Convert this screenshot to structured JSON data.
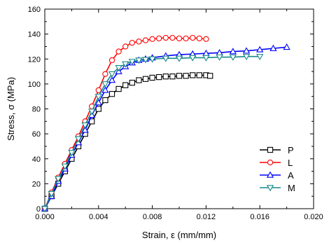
{
  "chart_data": {
    "type": "line",
    "title": "",
    "xlabel": "Strain, ε (mm/mm)",
    "ylabel": "Stress, σ (MPa)",
    "xlim": [
      0,
      0.02
    ],
    "ylim": [
      0,
      160
    ],
    "xticks": [
      "0.000",
      "0.004",
      "0.008",
      "0.012",
      "0.016",
      "0.020"
    ],
    "yticks": [
      "0",
      "20",
      "40",
      "60",
      "80",
      "100",
      "120",
      "140",
      "160"
    ],
    "grid": false,
    "legend_position": "lower-right",
    "series": [
      {
        "name": "P",
        "color": "#000000",
        "marker": "square",
        "x": [
          0,
          0.0005,
          0.001,
          0.0015,
          0.002,
          0.0025,
          0.003,
          0.0035,
          0.004,
          0.0045,
          0.005,
          0.0055,
          0.006,
          0.0065,
          0.007,
          0.0075,
          0.008,
          0.0085,
          0.009,
          0.0095,
          0.01,
          0.0105,
          0.011,
          0.0115,
          0.012,
          0.0123
        ],
        "y": [
          0,
          10,
          20,
          30,
          40,
          50,
          60,
          70,
          80,
          87,
          92,
          96,
          99,
          101,
          103,
          104,
          105,
          105.5,
          106,
          106,
          106.5,
          106.5,
          107,
          107,
          107,
          106.5
        ]
      },
      {
        "name": "L",
        "color": "#ff0000",
        "marker": "circle",
        "x": [
          0,
          0.0005,
          0.001,
          0.0015,
          0.002,
          0.0025,
          0.003,
          0.0035,
          0.004,
          0.0045,
          0.005,
          0.0055,
          0.006,
          0.0065,
          0.007,
          0.0075,
          0.008,
          0.0085,
          0.009,
          0.0095,
          0.01,
          0.0105,
          0.011,
          0.0115,
          0.012
        ],
        "y": [
          0,
          13,
          25,
          36,
          47,
          58,
          70,
          82,
          95,
          108,
          119,
          126,
          130,
          133,
          134,
          135,
          136,
          136.5,
          137,
          137,
          136.5,
          136.5,
          137,
          136.5,
          136
        ]
      },
      {
        "name": "A",
        "color": "#0000ff",
        "marker": "triangle-up",
        "x": [
          0,
          0.0005,
          0.001,
          0.0015,
          0.002,
          0.0025,
          0.003,
          0.0035,
          0.004,
          0.0045,
          0.005,
          0.0055,
          0.006,
          0.0065,
          0.007,
          0.0075,
          0.008,
          0.009,
          0.01,
          0.011,
          0.012,
          0.013,
          0.014,
          0.015,
          0.016,
          0.017,
          0.018
        ],
        "y": [
          0,
          10,
          22,
          32,
          43,
          53,
          63,
          75,
          85,
          95,
          103,
          110,
          114,
          117,
          119,
          120,
          121,
          122.5,
          123.5,
          124,
          124.5,
          125,
          126,
          126.5,
          127.5,
          128.5,
          129.5
        ]
      },
      {
        "name": "M",
        "color": "#1a8a8a",
        "marker": "triangle-down",
        "x": [
          0,
          0.0005,
          0.001,
          0.0015,
          0.002,
          0.0025,
          0.003,
          0.0035,
          0.004,
          0.0045,
          0.005,
          0.0055,
          0.006,
          0.0065,
          0.007,
          0.0075,
          0.008,
          0.009,
          0.01,
          0.011,
          0.012,
          0.013,
          0.014,
          0.015,
          0.016
        ],
        "y": [
          0,
          12,
          24,
          34,
          45,
          56,
          67,
          78,
          90,
          100,
          108,
          113,
          116,
          118,
          119,
          119.5,
          120,
          120.5,
          120.5,
          121,
          121,
          121.5,
          121.5,
          122,
          122
        ]
      }
    ]
  }
}
